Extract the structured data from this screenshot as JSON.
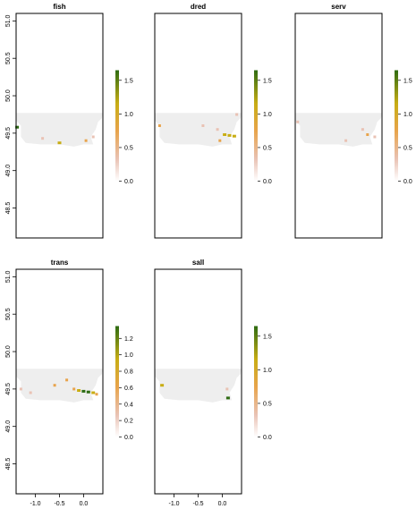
{
  "chart_data": {
    "type": "heatmap",
    "xlim": [
      -1.4,
      0.4
    ],
    "ylim": [
      48.1,
      51.1
    ],
    "x_ticks": [
      -1.0,
      -0.5,
      0.0
    ],
    "y_ticks": [
      48.5,
      49.0,
      49.5,
      50.0,
      50.5,
      51.0
    ],
    "colors": {
      "background_fill": "#eeeeee",
      "low": "#ece6e4",
      "mid_low": "#e9c2b4",
      "mid": "#e8a44c",
      "mid_high": "#c8ad14",
      "high": "#2d6b12"
    },
    "region_shape": [
      [
        -1.4,
        49.77
      ],
      [
        -1.4,
        49.67
      ],
      [
        -1.3,
        49.6
      ],
      [
        -1.3,
        49.45
      ],
      [
        -1.2,
        49.37
      ],
      [
        -0.9,
        49.35
      ],
      [
        -0.5,
        49.35
      ],
      [
        -0.2,
        49.32
      ],
      [
        0.0,
        49.35
      ],
      [
        0.2,
        49.35
      ],
      [
        0.15,
        49.45
      ],
      [
        0.25,
        49.55
      ],
      [
        0.3,
        49.65
      ],
      [
        0.38,
        49.7
      ],
      [
        0.4,
        49.77
      ]
    ],
    "panels": [
      {
        "title": "fish",
        "legend_ticks": [
          "0.0",
          "0.5",
          "1.0",
          "1.5"
        ],
        "legend_max": 1.65,
        "hotspots": [
          {
            "x": -1.38,
            "y": 49.58,
            "value": 1.5
          },
          {
            "x": -0.85,
            "y": 49.43,
            "value": 0.4
          },
          {
            "x": -0.5,
            "y": 49.37,
            "value": 1.2
          },
          {
            "x": 0.05,
            "y": 49.4,
            "value": 0.7
          },
          {
            "x": 0.2,
            "y": 49.45,
            "value": 0.5
          }
        ]
      },
      {
        "title": "dred",
        "legend_ticks": [
          "0.0",
          "0.5",
          "1.0",
          "1.5"
        ],
        "legend_max": 1.65,
        "hotspots": [
          {
            "x": -1.3,
            "y": 49.6,
            "value": 0.7
          },
          {
            "x": -0.4,
            "y": 49.6,
            "value": 0.4
          },
          {
            "x": -0.1,
            "y": 49.55,
            "value": 0.5
          },
          {
            "x": 0.05,
            "y": 49.48,
            "value": 1.0
          },
          {
            "x": 0.15,
            "y": 49.47,
            "value": 1.1
          },
          {
            "x": 0.25,
            "y": 49.46,
            "value": 1.0
          },
          {
            "x": -0.05,
            "y": 49.4,
            "value": 0.7
          },
          {
            "x": 0.3,
            "y": 49.75,
            "value": 0.3
          }
        ]
      },
      {
        "title": "serv",
        "legend_ticks": [
          "0.0",
          "0.5",
          "1.0",
          "1.5"
        ],
        "legend_max": 1.65,
        "hotspots": [
          {
            "x": -1.35,
            "y": 49.65,
            "value": 0.3
          },
          {
            "x": 0.0,
            "y": 49.55,
            "value": 0.4
          },
          {
            "x": 0.1,
            "y": 49.48,
            "value": 0.6
          },
          {
            "x": 0.25,
            "y": 49.45,
            "value": 0.5
          },
          {
            "x": -0.35,
            "y": 49.4,
            "value": 0.4
          }
        ]
      },
      {
        "title": "trans",
        "legend_ticks": [
          "0.0",
          "0.2",
          "0.4",
          "0.6",
          "0.8",
          "1.0",
          "1.2"
        ],
        "legend_max": 1.35,
        "hotspots": [
          {
            "x": -0.6,
            "y": 49.55,
            "value": 0.5
          },
          {
            "x": -0.35,
            "y": 49.62,
            "value": 0.6
          },
          {
            "x": -0.2,
            "y": 49.5,
            "value": 0.5
          },
          {
            "x": -0.1,
            "y": 49.48,
            "value": 0.9
          },
          {
            "x": 0.0,
            "y": 49.47,
            "value": 1.1
          },
          {
            "x": 0.1,
            "y": 49.46,
            "value": 1.2
          },
          {
            "x": 0.2,
            "y": 49.45,
            "value": 1.0
          },
          {
            "x": 0.27,
            "y": 49.43,
            "value": 0.8
          },
          {
            "x": -1.3,
            "y": 49.5,
            "value": 0.3
          },
          {
            "x": -1.1,
            "y": 49.45,
            "value": 0.3
          }
        ]
      },
      {
        "title": "sall",
        "legend_ticks": [
          "0.0",
          "0.5",
          "1.0",
          "1.5"
        ],
        "legend_max": 1.65,
        "hotspots": [
          {
            "x": -1.25,
            "y": 49.55,
            "value": 1.3
          },
          {
            "x": 0.1,
            "y": 49.5,
            "value": 0.4
          },
          {
            "x": 0.12,
            "y": 49.38,
            "value": 1.5
          }
        ]
      }
    ]
  }
}
